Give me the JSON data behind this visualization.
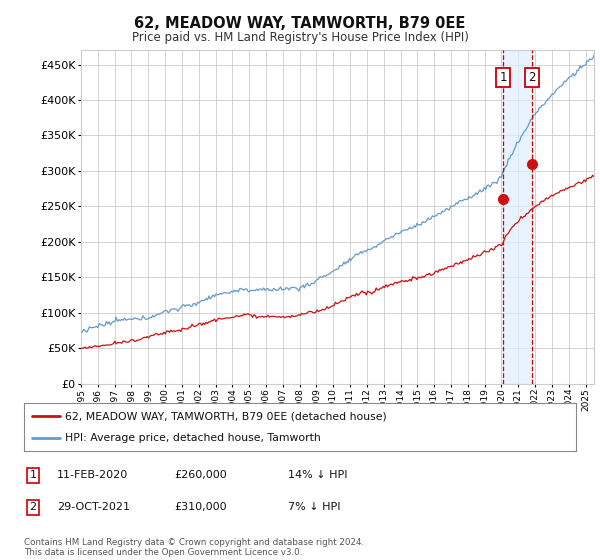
{
  "title": "62, MEADOW WAY, TAMWORTH, B79 0EE",
  "subtitle": "Price paid vs. HM Land Registry's House Price Index (HPI)",
  "ylabel_values": [
    0,
    50000,
    100000,
    150000,
    200000,
    250000,
    300000,
    350000,
    400000,
    450000
  ],
  "ylim": [
    0,
    470000
  ],
  "xlim_start": 1995.0,
  "xlim_end": 2025.5,
  "hpi_color": "#6699cc",
  "price_color": "#cc1111",
  "vline_color": "#cc0000",
  "shade_color": "#ddeeff",
  "marker1_year": 2020.1,
  "marker2_year": 2021.83,
  "marker1_price": 260000,
  "marker2_price": 310000,
  "legend_line1": "62, MEADOW WAY, TAMWORTH, B79 0EE (detached house)",
  "legend_line2": "HPI: Average price, detached house, Tamworth",
  "table_row1_num": "1",
  "table_row1_date": "11-FEB-2020",
  "table_row1_price": "£260,000",
  "table_row1_hpi": "14% ↓ HPI",
  "table_row2_num": "2",
  "table_row2_date": "29-OCT-2021",
  "table_row2_price": "£310,000",
  "table_row2_hpi": "7% ↓ HPI",
  "footnote": "Contains HM Land Registry data © Crown copyright and database right 2024.\nThis data is licensed under the Open Government Licence v3.0.",
  "bg_color": "#ffffff",
  "grid_color": "#cccccc"
}
